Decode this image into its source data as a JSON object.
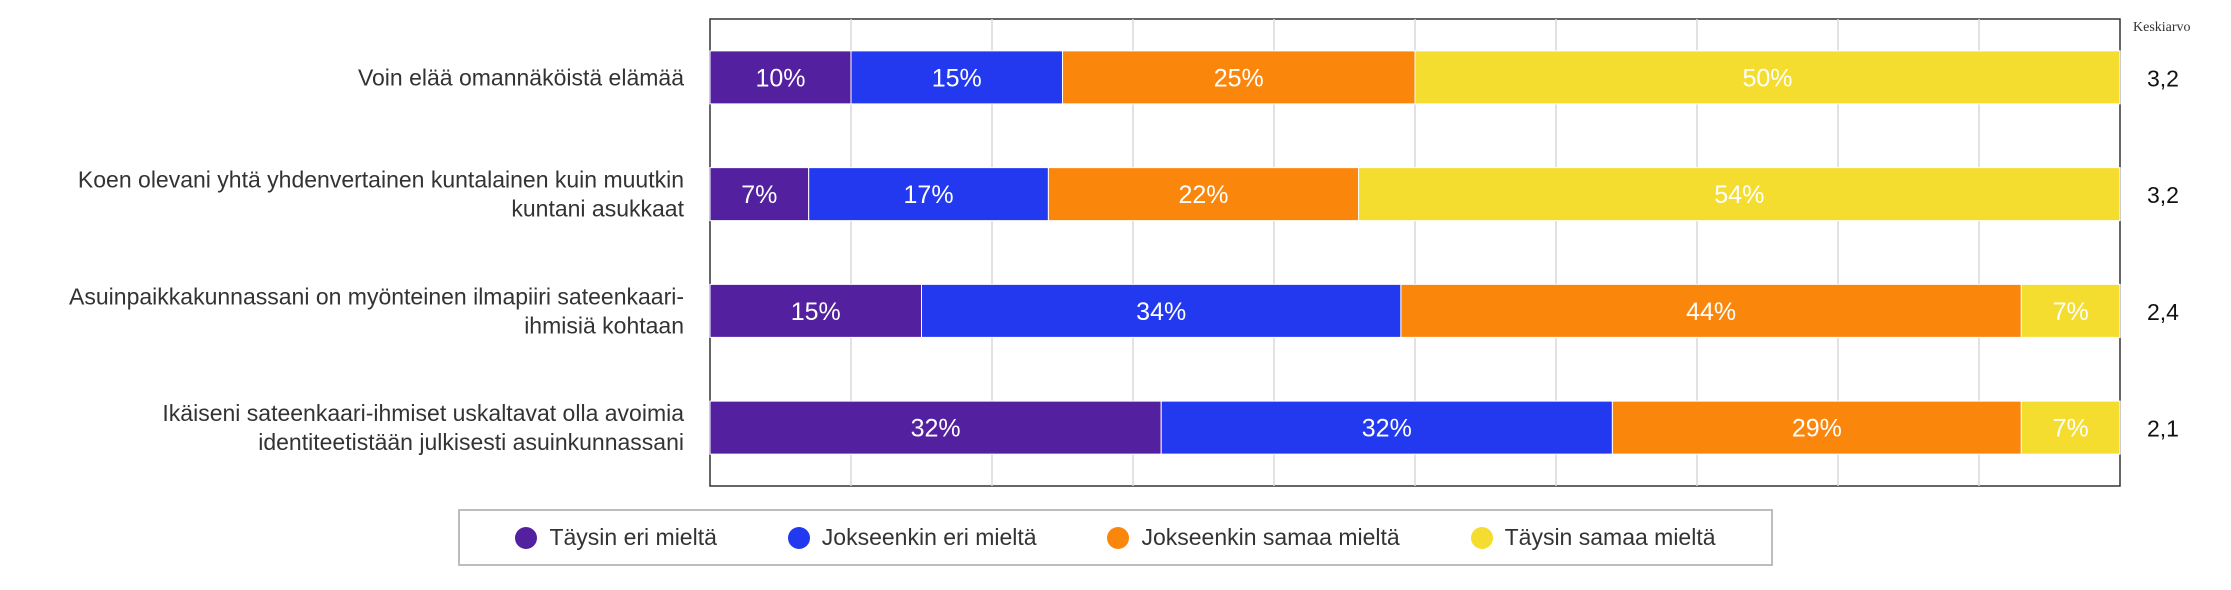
{
  "chart_data": {
    "type": "bar",
    "orientation": "horizontal",
    "stacked": true,
    "categories": [
      [
        "Voin elää omannäköistä elämää"
      ],
      [
        "Koen olevani yhtä yhdenvertainen kuntalainen kuin muutkin",
        "kuntani asukkaat"
      ],
      [
        "Asuinpaikkakunnassani on myönteinen ilmapiiri sateenkaari-",
        "ihmisiä kohtaan"
      ],
      [
        "Ikäiseni sateenkaari-ihmiset uskaltavat olla avoimia",
        "identiteetistään julkisesti asuinkunnassani"
      ]
    ],
    "series": [
      {
        "name": "Täysin eri mieltä",
        "color": "#5320a0",
        "values": [
          10,
          7,
          15,
          32
        ]
      },
      {
        "name": "Jokseenkin eri mieltä",
        "color": "#2239f0",
        "values": [
          15,
          17,
          34,
          32
        ]
      },
      {
        "name": "Jokseenkin samaa mieltä",
        "color": "#fb860c",
        "values": [
          25,
          22,
          44,
          29
        ]
      },
      {
        "name": "Täysin samaa mieltä",
        "color": "#f4dd2e",
        "values": [
          50,
          54,
          7,
          7
        ]
      }
    ],
    "average_header": "Keskiarvo",
    "averages": [
      "3,2",
      "3,2",
      "2,4",
      "2,1"
    ],
    "xlim": [
      0,
      100
    ],
    "value_suffix": "%",
    "grid": true,
    "legend_position": "bottom"
  }
}
